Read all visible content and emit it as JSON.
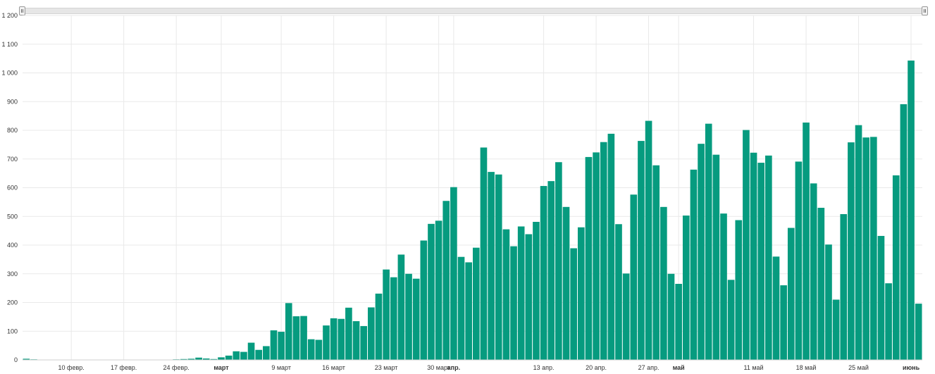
{
  "colors": {
    "bar": "#069b7f",
    "grid": "#e9e9e9",
    "axis": "#cfcfcf"
  },
  "navigator": {
    "left_handle_icon": "grip-icon",
    "right_handle_icon": "grip-icon"
  },
  "chart_data": {
    "type": "bar",
    "title": "",
    "xlabel": "",
    "ylabel": "",
    "ylim": [
      0,
      1200
    ],
    "y_ticks": [
      0,
      100,
      200,
      300,
      400,
      500,
      600,
      700,
      800,
      900,
      1000,
      1100,
      1200
    ],
    "y_tick_labels": [
      "0",
      "100",
      "200",
      "300",
      "400",
      "500",
      "600",
      "700",
      "800",
      "900",
      "1 000",
      "1 100",
      "1 200"
    ],
    "x_tick_labels": [
      {
        "label": "10 февр.",
        "index": 6,
        "bold": false
      },
      {
        "label": "17 февр.",
        "index": 13,
        "bold": false
      },
      {
        "label": "24 февр.",
        "index": 20,
        "bold": false
      },
      {
        "label": "март",
        "index": 26,
        "bold": true
      },
      {
        "label": "9 март",
        "index": 34,
        "bold": false
      },
      {
        "label": "16 март",
        "index": 41,
        "bold": false
      },
      {
        "label": "23 март",
        "index": 48,
        "bold": false
      },
      {
        "label": "30 март",
        "index": 55,
        "bold": false
      },
      {
        "label": "апр.",
        "index": 57,
        "bold": true
      },
      {
        "label": "13 апр.",
        "index": 69,
        "bold": false
      },
      {
        "label": "20 апр.",
        "index": 76,
        "bold": false
      },
      {
        "label": "27 апр.",
        "index": 83,
        "bold": false
      },
      {
        "label": "май",
        "index": 87,
        "bold": true
      },
      {
        "label": "11 май",
        "index": 97,
        "bold": false
      },
      {
        "label": "18 май",
        "index": 104,
        "bold": false
      },
      {
        "label": "25 май",
        "index": 111,
        "bold": false
      },
      {
        "label": "июнь",
        "index": 118,
        "bold": true
      }
    ],
    "grid": true,
    "series": [
      {
        "values": [
          4,
          2,
          1,
          1,
          1,
          1,
          1,
          1,
          1,
          1,
          1,
          1,
          1,
          1,
          1,
          1,
          1,
          1,
          1,
          1,
          2,
          3,
          4,
          8,
          5,
          3,
          9,
          15,
          30,
          28,
          60,
          35,
          48,
          103,
          98,
          198,
          152,
          153,
          72,
          70,
          120,
          145,
          143,
          182,
          135,
          118,
          183,
          231,
          315,
          288,
          367,
          300,
          283,
          416,
          474,
          485,
          554,
          602,
          359,
          340,
          391,
          740,
          655,
          646,
          455,
          396,
          465,
          438,
          481,
          606,
          623,
          689,
          533,
          389,
          462,
          707,
          723,
          759,
          788,
          473,
          301,
          576,
          763,
          833,
          678,
          533,
          300,
          265,
          503,
          663,
          753,
          823,
          715,
          510,
          279,
          487,
          801,
          722,
          687,
          712,
          360,
          260,
          460,
          691,
          827,
          615,
          530,
          402,
          210,
          508,
          758,
          818,
          775,
          777,
          432,
          267,
          643,
          891,
          1043,
          196
        ]
      }
    ]
  }
}
